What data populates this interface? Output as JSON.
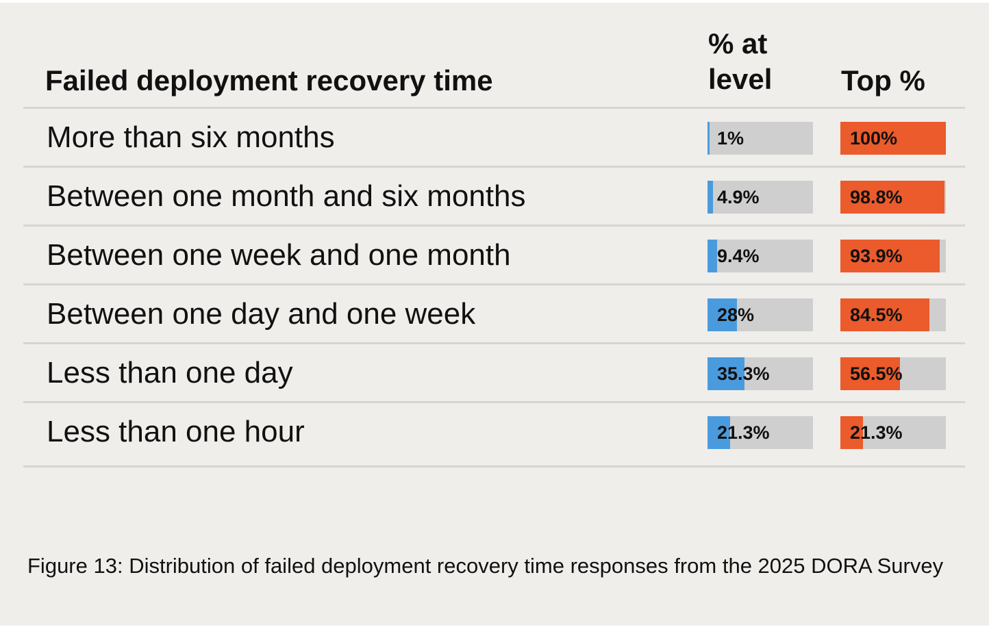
{
  "colors": {
    "level_bar": "#4a9bde",
    "top_bar": "#eb5b2b",
    "bar_track": "#cfcfcf",
    "background": "#efeeeb"
  },
  "header": {
    "label_col": "Failed deployment recovery time",
    "pct_col": "% at level",
    "top_col": "Top %"
  },
  "chart_data": {
    "type": "table",
    "title": "Failed deployment recovery time",
    "columns": [
      "% at level",
      "Top %"
    ],
    "rows": [
      {
        "label": "More than six months",
        "pct_at_level": 1,
        "pct_at_level_text": "1%",
        "top_pct": 100,
        "top_pct_text": "100%"
      },
      {
        "label": "Between one month and six months",
        "pct_at_level": 4.9,
        "pct_at_level_text": "4.9%",
        "top_pct": 98.8,
        "top_pct_text": "98.8%"
      },
      {
        "label": "Between one week and one month",
        "pct_at_level": 9.4,
        "pct_at_level_text": "9.4%",
        "top_pct": 93.9,
        "top_pct_text": "93.9%"
      },
      {
        "label": "Between one day and one week",
        "pct_at_level": 28,
        "pct_at_level_text": "28%",
        "top_pct": 84.5,
        "top_pct_text": "84.5%"
      },
      {
        "label": "Less than one day",
        "pct_at_level": 35.3,
        "pct_at_level_text": "35.3%",
        "top_pct": 56.5,
        "top_pct_text": "56.5%"
      },
      {
        "label": "Less than one hour",
        "pct_at_level": 21.3,
        "pct_at_level_text": "21.3%",
        "top_pct": 21.3,
        "top_pct_text": "21.3%"
      }
    ],
    "bar_max": 100
  },
  "caption": "Figure 13: Distribution of failed deployment recovery time responses from the 2025 DORA Survey"
}
